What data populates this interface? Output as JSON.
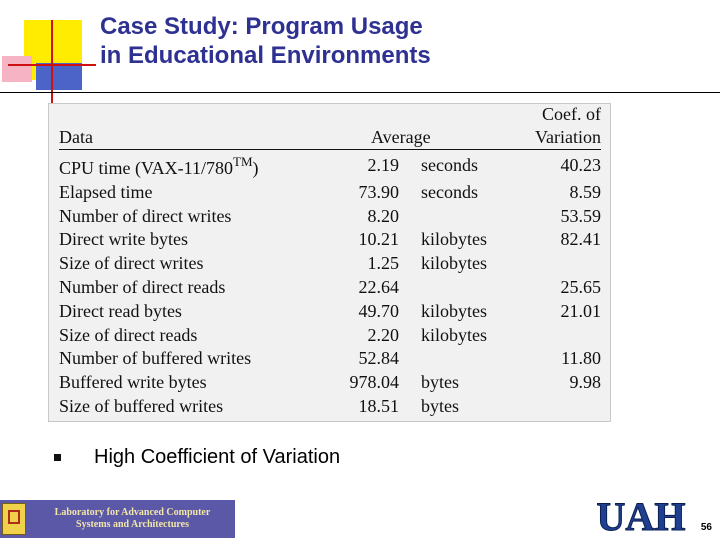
{
  "slide": {
    "title_line1": "Case Study: Program Usage",
    "title_line2": "in Educational Environments",
    "bullet": "High Coefficient of Variation",
    "page_number": "56"
  },
  "table": {
    "headers": {
      "data": "Data",
      "average": "Average",
      "coef_line1": "Coef. of",
      "coef_line2": "Variation"
    },
    "rows": [
      {
        "data": "CPU time (VAX-11/780",
        "sup": "TM",
        "suffix": ")",
        "avg": "2.19",
        "unit": "seconds",
        "coef": "40.23"
      },
      {
        "data": "Elapsed time",
        "avg": "73.90",
        "unit": "seconds",
        "coef": "8.59"
      },
      {
        "data": "Number of direct writes",
        "avg": "8.20",
        "unit": "",
        "coef": "53.59"
      },
      {
        "data": "Direct write bytes",
        "avg": "10.21",
        "unit": "kilobytes",
        "coef": "82.41"
      },
      {
        "data": "Size of direct writes",
        "avg": "1.25",
        "unit": "kilobytes",
        "coef": ""
      },
      {
        "data": "Number of direct reads",
        "avg": "22.64",
        "unit": "",
        "coef": "25.65"
      },
      {
        "data": "Direct read bytes",
        "avg": "49.70",
        "unit": "kilobytes",
        "coef": "21.01"
      },
      {
        "data": "Size of direct reads",
        "avg": "2.20",
        "unit": "kilobytes",
        "coef": ""
      },
      {
        "data": "Number of buffered writes",
        "avg": "52.84",
        "unit": "",
        "coef": "11.80"
      },
      {
        "data": "Buffered write bytes",
        "avg": "978.04",
        "unit": "bytes",
        "coef": "9.98"
      },
      {
        "data": "Size of buffered writes",
        "avg": "18.51",
        "unit": "bytes",
        "coef": ""
      }
    ]
  },
  "footer": {
    "lab_line1": "Laboratory for Advanced Computer",
    "lab_line2": "Systems and Architectures",
    "logo_text": "UAH"
  },
  "colors": {
    "title": "#2e3192",
    "banner": "#5b58a8",
    "uah_blue": "#1f3f8f"
  }
}
